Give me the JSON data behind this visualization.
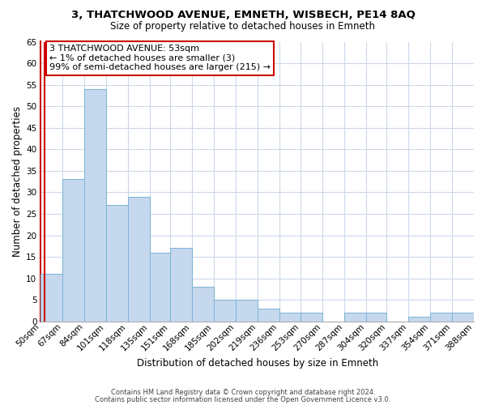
{
  "title": "3, THATCHWOOD AVENUE, EMNETH, WISBECH, PE14 8AQ",
  "subtitle": "Size of property relative to detached houses in Emneth",
  "xlabel": "Distribution of detached houses by size in Emneth",
  "ylabel": "Number of detached properties",
  "bar_color": "#c5d8ed",
  "bar_edge_color": "#7ab3d4",
  "bar_heights": [
    11,
    33,
    54,
    27,
    29,
    16,
    17,
    8,
    5,
    5,
    3,
    2,
    2,
    0,
    2,
    2,
    0,
    1,
    2,
    2
  ],
  "bin_edges": [
    50,
    67,
    84,
    101,
    118,
    135,
    151,
    168,
    185,
    202,
    219,
    236,
    253,
    270,
    287,
    304,
    320,
    337,
    354,
    371,
    388
  ],
  "bin_labels": [
    "50sqm",
    "67sqm",
    "84sqm",
    "101sqm",
    "118sqm",
    "135sqm",
    "151sqm",
    "168sqm",
    "185sqm",
    "202sqm",
    "219sqm",
    "236sqm",
    "253sqm",
    "270sqm",
    "287sqm",
    "304sqm",
    "320sqm",
    "337sqm",
    "354sqm",
    "371sqm",
    "388sqm"
  ],
  "ylim": [
    0,
    65
  ],
  "yticks": [
    0,
    5,
    10,
    15,
    20,
    25,
    30,
    35,
    40,
    45,
    50,
    55,
    60,
    65
  ],
  "annotation_title": "3 THATCHWOOD AVENUE: 53sqm",
  "annotation_line2": "← 1% of detached houses are smaller (3)",
  "annotation_line3": "99% of semi-detached houses are larger (215) →",
  "annotation_box_color": "#ffffff",
  "annotation_box_edge": "#cc0000",
  "vline_x": 53,
  "vline_color": "#cc0000",
  "footer1": "Contains HM Land Registry data © Crown copyright and database right 2024.",
  "footer2": "Contains public sector information licensed under the Open Government Licence v3.0.",
  "background_color": "#ffffff",
  "grid_color": "#ccd9e8",
  "left_spine_color": "#cc0000",
  "title_fontsize": 9.5,
  "subtitle_fontsize": 8.5,
  "ylabel_fontsize": 8.5,
  "xlabel_fontsize": 8.5,
  "tick_fontsize": 7.5,
  "annotation_fontsize": 8.0,
  "footer_fontsize": 6.0
}
